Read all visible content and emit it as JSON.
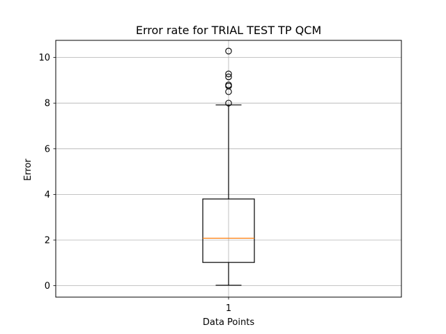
{
  "chart_data": {
    "type": "box",
    "title": "Error rate for TRIAL TEST TP QCM",
    "xlabel": "Data Points",
    "ylabel": "Error",
    "categories": [
      "1"
    ],
    "yticks": [
      0,
      2,
      4,
      6,
      8,
      10
    ],
    "ylim": [
      -0.5,
      10.75
    ],
    "grid": true,
    "colors": {
      "box": "#000000",
      "median": "#ff7f0e",
      "grid": "#b0b0b0",
      "flier": "#000000"
    },
    "boxes": [
      {
        "category": "1",
        "whisker_low": 0.02,
        "q1": 1.02,
        "median": 2.08,
        "q3": 3.8,
        "whisker_high": 7.92,
        "outliers": [
          8.0,
          8.5,
          8.75,
          8.8,
          9.15,
          9.28,
          10.28
        ]
      }
    ]
  }
}
